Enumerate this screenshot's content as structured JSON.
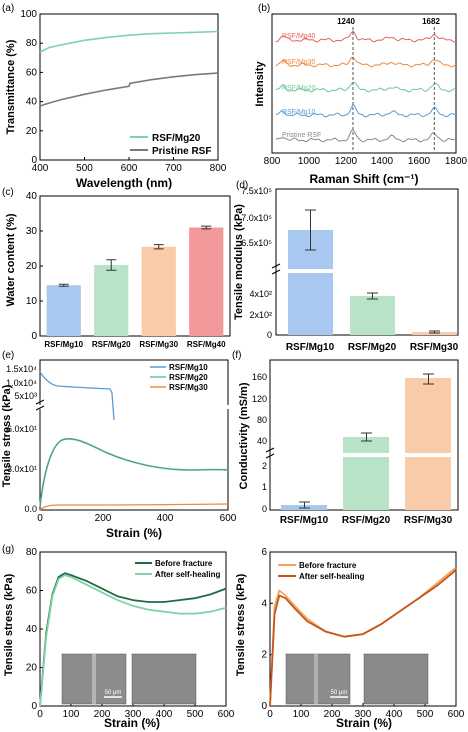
{
  "chart_data": [
    {
      "panel": "(a)",
      "type": "line",
      "xlabel": "Wavelength (nm)",
      "ylabel": "Transmittance (%)",
      "xlim": [
        400,
        800
      ],
      "ylim": [
        0,
        100
      ],
      "xticks": [
        400,
        500,
        600,
        700,
        800
      ],
      "yticks": [
        0,
        20,
        40,
        60,
        80,
        100
      ],
      "legend_position": "bottom-right",
      "series": [
        {
          "name": "RSF/Mg20",
          "color": "#7ed3a6",
          "x": [
            400,
            420,
            450,
            500,
            550,
            600,
            650,
            700,
            750,
            800
          ],
          "y": [
            74,
            77,
            79,
            82,
            84,
            85.5,
            86.5,
            87,
            87.5,
            88
          ]
        },
        {
          "name": "Pristine RSF",
          "color": "#7a7a7a",
          "x": [
            400,
            420,
            450,
            500,
            550,
            600,
            602,
            650,
            700,
            750,
            800
          ],
          "y": [
            37,
            39,
            41.5,
            45,
            48,
            50.5,
            52.5,
            55,
            57,
            58.5,
            59.5
          ]
        }
      ]
    },
    {
      "panel": "(b)",
      "type": "line",
      "xlabel": "Raman Shift (cm⁻¹)",
      "ylabel": "Intensity",
      "xlim": [
        800,
        1800
      ],
      "xticks": [
        800,
        1000,
        1200,
        1400,
        1600,
        1800
      ],
      "annotations": [
        "1240",
        "1682"
      ],
      "series": [
        {
          "name": "RSF/Mg40",
          "color": "#e8625c"
        },
        {
          "name": "RSF/Mg30",
          "color": "#f08a3c"
        },
        {
          "name": "RSF/Mg20",
          "color": "#6cc89a"
        },
        {
          "name": "RSF/Mg10",
          "color": "#5b9bd5"
        },
        {
          "name": "Pristine RSF",
          "color": "#8a8a8a"
        }
      ]
    },
    {
      "panel": "(c)",
      "type": "bar",
      "ylabel": "Water content (%)",
      "ylim": [
        0,
        40
      ],
      "yticks": [
        0,
        10,
        20,
        30,
        40
      ],
      "categories": [
        "RSF/Mg10",
        "RSF/Mg20",
        "RSF/Mg30",
        "RSF/Mg40"
      ],
      "values": [
        14.5,
        20.3,
        25.5,
        31
      ],
      "errors": [
        0.3,
        1.5,
        0.6,
        0.4
      ],
      "colors": [
        "#a9c8ef",
        "#b8e3c6",
        "#f9cba8",
        "#f2999c"
      ]
    },
    {
      "panel": "(d)",
      "type": "bar",
      "ylabel": "Tensile modulus (kPa)",
      "axis_break": true,
      "yticks_upper": [
        "7.5x10⁵",
        "7.0x10⁵",
        "6.5x10⁵"
      ],
      "yticks_lower": [
        "4x10²",
        "2x10²",
        "0"
      ],
      "categories": [
        "RSF/Mg10",
        "RSF/Mg20",
        "RSF/Mg30"
      ],
      "values": [
        680000,
        370,
        30
      ],
      "errors": [
        40000,
        15,
        5
      ],
      "colors": [
        "#a9c8ef",
        "#b8e3c6",
        "#f9cba8"
      ]
    },
    {
      "panel": "(e)",
      "type": "line",
      "xlabel": "Strain (%)",
      "ylabel": "Tensile stress (kPa)",
      "axis_break": true,
      "xlim": [
        0,
        600
      ],
      "xticks": [
        0,
        200,
        400,
        600
      ],
      "yticks_upper": [
        "1.5x10⁴",
        "1.0x10⁴",
        "5x10³"
      ],
      "yticks_lower": [
        "6.0x10¹",
        "3.0x10¹",
        "0.0"
      ],
      "series": [
        {
          "name": "RSF/Mg10",
          "color": "#5b9bd5"
        },
        {
          "name": "RSF/Mg20",
          "color": "#6cc89a"
        },
        {
          "name": "RSF/Mg30",
          "color": "#f08a3c"
        }
      ]
    },
    {
      "panel": "(f)",
      "type": "bar",
      "ylabel": "Conductivity (mS/m)",
      "axis_break": true,
      "yticks_upper": [
        160,
        120,
        80,
        40
      ],
      "yticks_lower": [
        2,
        1,
        0
      ],
      "categories": [
        "RSF/Mg10",
        "RSF/Mg20",
        "RSF/Mg30"
      ],
      "values": [
        0.2,
        47,
        155
      ],
      "errors": [
        0.1,
        6,
        6
      ],
      "colors": [
        "#a9c8ef",
        "#b8e3c6",
        "#f9cba8"
      ]
    },
    {
      "panel": "(g)",
      "type": "line",
      "xlabel": "Strain (%)",
      "ylabel": "Tensile stress (kPa)",
      "xlim": [
        0,
        600
      ],
      "ylim": [
        0,
        80
      ],
      "xticks": [
        0,
        100,
        200,
        300,
        400,
        500,
        600
      ],
      "yticks": [
        0,
        20,
        40,
        60,
        80
      ],
      "inset_scale": "50 μm",
      "series": [
        {
          "name": "Before fracture",
          "color": "#1f6b42",
          "x": [
            0,
            20,
            40,
            60,
            80,
            100,
            150,
            200,
            250,
            300,
            350,
            400,
            450,
            500,
            550,
            600
          ],
          "y": [
            0,
            38,
            58,
            67,
            69,
            68,
            65,
            61,
            57,
            55,
            54,
            54,
            55,
            56,
            58,
            61
          ]
        },
        {
          "name": "After self-healing",
          "color": "#7ed3a6",
          "x": [
            0,
            20,
            40,
            60,
            80,
            100,
            150,
            200,
            250,
            300,
            350,
            400,
            450,
            500,
            550,
            600
          ],
          "y": [
            0,
            36,
            57,
            66,
            68,
            67,
            63,
            59,
            55,
            52,
            50,
            49,
            48,
            48,
            49,
            51
          ]
        }
      ]
    },
    {
      "panel": "(g-right)",
      "type": "line",
      "xlabel": "Strain (%)",
      "ylabel": "Tensile stress (kPa)",
      "xlim": [
        0,
        600
      ],
      "ylim": [
        0,
        6
      ],
      "xticks": [
        0,
        100,
        200,
        300,
        400,
        500,
        600
      ],
      "yticks": [
        0,
        2,
        4,
        6
      ],
      "inset_scale": "50 μm",
      "series": [
        {
          "name": "Before fracture",
          "color": "#f4a460",
          "x": [
            0,
            15,
            30,
            50,
            80,
            120,
            180,
            240,
            300,
            360,
            420,
            480,
            540,
            600
          ],
          "y": [
            0,
            3.9,
            4.5,
            4.3,
            3.9,
            3.4,
            2.9,
            2.7,
            2.8,
            3.2,
            3.7,
            4.2,
            4.8,
            5.4
          ]
        },
        {
          "name": "After self-healing",
          "color": "#c4561a",
          "x": [
            0,
            15,
            30,
            50,
            80,
            120,
            180,
            240,
            300,
            360,
            420,
            480,
            540,
            600
          ],
          "y": [
            0,
            3.6,
            4.3,
            4.2,
            3.8,
            3.3,
            2.9,
            2.7,
            2.8,
            3.2,
            3.7,
            4.2,
            4.7,
            5.3
          ]
        }
      ]
    }
  ]
}
